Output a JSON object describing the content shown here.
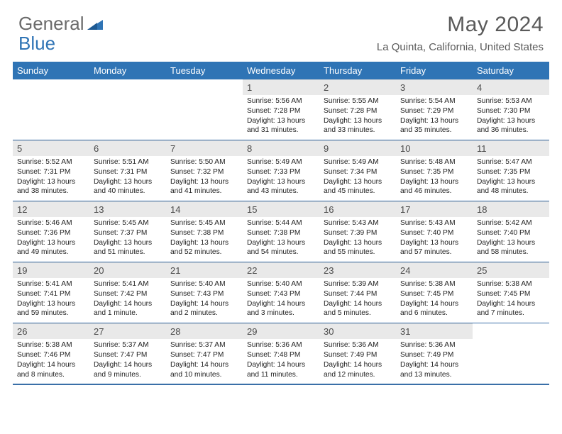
{
  "logo": {
    "text1": "General",
    "text2": "Blue"
  },
  "title": "May 2024",
  "location": "La Quinta, California, United States",
  "colors": {
    "header_bg": "#2f74b5",
    "daynum_bg": "#e9e9e9",
    "rule": "#3a6fa8",
    "logo_gray": "#6b6b6b",
    "logo_blue": "#2f74b5",
    "text": "#222222"
  },
  "weekdays": [
    "Sunday",
    "Monday",
    "Tuesday",
    "Wednesday",
    "Thursday",
    "Friday",
    "Saturday"
  ],
  "weeks": [
    [
      null,
      null,
      null,
      {
        "n": "1",
        "sr": "5:56 AM",
        "ss": "7:28 PM",
        "dl": "13 hours and 31 minutes."
      },
      {
        "n": "2",
        "sr": "5:55 AM",
        "ss": "7:28 PM",
        "dl": "13 hours and 33 minutes."
      },
      {
        "n": "3",
        "sr": "5:54 AM",
        "ss": "7:29 PM",
        "dl": "13 hours and 35 minutes."
      },
      {
        "n": "4",
        "sr": "5:53 AM",
        "ss": "7:30 PM",
        "dl": "13 hours and 36 minutes."
      }
    ],
    [
      {
        "n": "5",
        "sr": "5:52 AM",
        "ss": "7:31 PM",
        "dl": "13 hours and 38 minutes."
      },
      {
        "n": "6",
        "sr": "5:51 AM",
        "ss": "7:31 PM",
        "dl": "13 hours and 40 minutes."
      },
      {
        "n": "7",
        "sr": "5:50 AM",
        "ss": "7:32 PM",
        "dl": "13 hours and 41 minutes."
      },
      {
        "n": "8",
        "sr": "5:49 AM",
        "ss": "7:33 PM",
        "dl": "13 hours and 43 minutes."
      },
      {
        "n": "9",
        "sr": "5:49 AM",
        "ss": "7:34 PM",
        "dl": "13 hours and 45 minutes."
      },
      {
        "n": "10",
        "sr": "5:48 AM",
        "ss": "7:35 PM",
        "dl": "13 hours and 46 minutes."
      },
      {
        "n": "11",
        "sr": "5:47 AM",
        "ss": "7:35 PM",
        "dl": "13 hours and 48 minutes."
      }
    ],
    [
      {
        "n": "12",
        "sr": "5:46 AM",
        "ss": "7:36 PM",
        "dl": "13 hours and 49 minutes."
      },
      {
        "n": "13",
        "sr": "5:45 AM",
        "ss": "7:37 PM",
        "dl": "13 hours and 51 minutes."
      },
      {
        "n": "14",
        "sr": "5:45 AM",
        "ss": "7:38 PM",
        "dl": "13 hours and 52 minutes."
      },
      {
        "n": "15",
        "sr": "5:44 AM",
        "ss": "7:38 PM",
        "dl": "13 hours and 54 minutes."
      },
      {
        "n": "16",
        "sr": "5:43 AM",
        "ss": "7:39 PM",
        "dl": "13 hours and 55 minutes."
      },
      {
        "n": "17",
        "sr": "5:43 AM",
        "ss": "7:40 PM",
        "dl": "13 hours and 57 minutes."
      },
      {
        "n": "18",
        "sr": "5:42 AM",
        "ss": "7:40 PM",
        "dl": "13 hours and 58 minutes."
      }
    ],
    [
      {
        "n": "19",
        "sr": "5:41 AM",
        "ss": "7:41 PM",
        "dl": "13 hours and 59 minutes."
      },
      {
        "n": "20",
        "sr": "5:41 AM",
        "ss": "7:42 PM",
        "dl": "14 hours and 1 minute."
      },
      {
        "n": "21",
        "sr": "5:40 AM",
        "ss": "7:43 PM",
        "dl": "14 hours and 2 minutes."
      },
      {
        "n": "22",
        "sr": "5:40 AM",
        "ss": "7:43 PM",
        "dl": "14 hours and 3 minutes."
      },
      {
        "n": "23",
        "sr": "5:39 AM",
        "ss": "7:44 PM",
        "dl": "14 hours and 5 minutes."
      },
      {
        "n": "24",
        "sr": "5:38 AM",
        "ss": "7:45 PM",
        "dl": "14 hours and 6 minutes."
      },
      {
        "n": "25",
        "sr": "5:38 AM",
        "ss": "7:45 PM",
        "dl": "14 hours and 7 minutes."
      }
    ],
    [
      {
        "n": "26",
        "sr": "5:38 AM",
        "ss": "7:46 PM",
        "dl": "14 hours and 8 minutes."
      },
      {
        "n": "27",
        "sr": "5:37 AM",
        "ss": "7:47 PM",
        "dl": "14 hours and 9 minutes."
      },
      {
        "n": "28",
        "sr": "5:37 AM",
        "ss": "7:47 PM",
        "dl": "14 hours and 10 minutes."
      },
      {
        "n": "29",
        "sr": "5:36 AM",
        "ss": "7:48 PM",
        "dl": "14 hours and 11 minutes."
      },
      {
        "n": "30",
        "sr": "5:36 AM",
        "ss": "7:49 PM",
        "dl": "14 hours and 12 minutes."
      },
      {
        "n": "31",
        "sr": "5:36 AM",
        "ss": "7:49 PM",
        "dl": "14 hours and 13 minutes."
      },
      null
    ]
  ],
  "labels": {
    "sunrise": "Sunrise:",
    "sunset": "Sunset:",
    "daylight": "Daylight:"
  }
}
